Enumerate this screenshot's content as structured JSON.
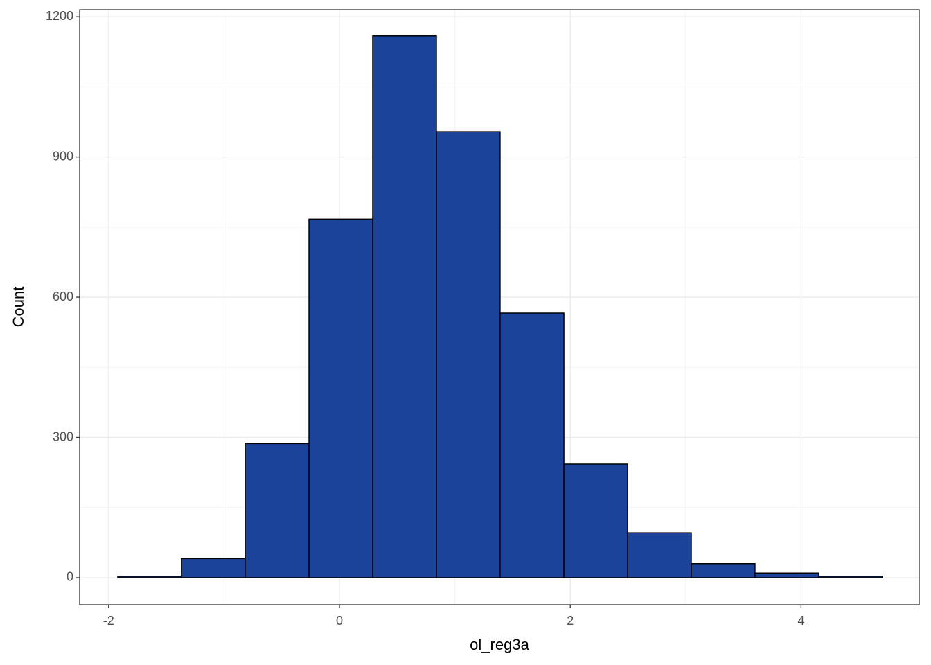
{
  "chart_data": {
    "type": "histogram",
    "x_label": "ol_reg3a",
    "y_label": "Count",
    "bins": [
      -1.921,
      -1.369,
      -0.817,
      -0.264,
      0.288,
      0.84,
      1.392,
      1.945,
      2.497,
      3.049,
      3.601,
      4.153,
      4.706
    ],
    "values": [
      3,
      41,
      287,
      767,
      1159,
      954,
      566,
      243,
      96,
      30,
      10,
      3
    ],
    "color": "#1a4399",
    "edgecolor": "#000000",
    "xlim": [
      -2.251,
      5.024
    ],
    "ylim": [
      -57.8,
      1215
    ],
    "xticks": [
      -2,
      0,
      2,
      4
    ],
    "yticks": [
      0,
      300,
      600,
      900,
      1200
    ],
    "grid": true
  }
}
